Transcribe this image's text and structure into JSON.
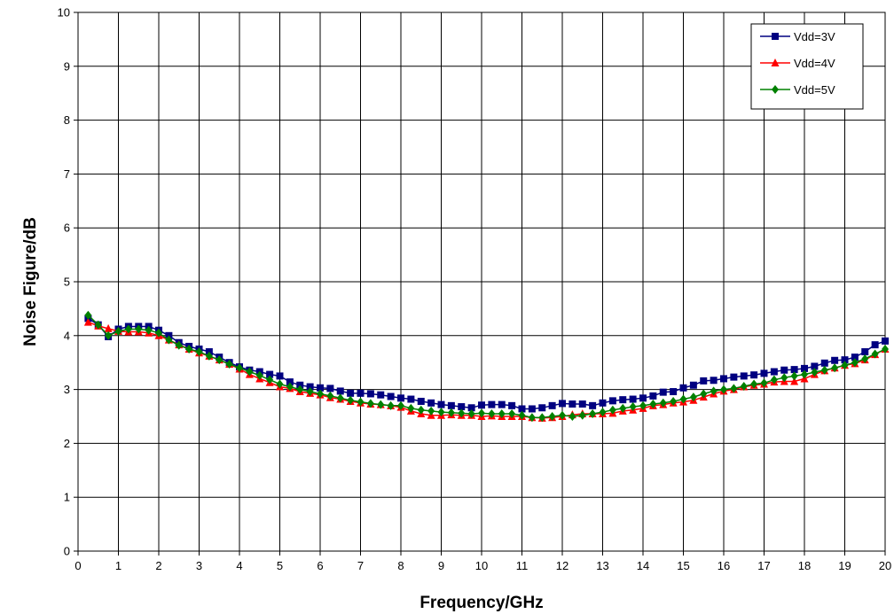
{
  "chart_data": {
    "type": "line",
    "xlabel": "Frequency/GHz",
    "ylabel": "Noise Figure/dB",
    "xlim": [
      0,
      20
    ],
    "ylim": [
      0,
      10
    ],
    "xticks": [
      "0",
      "1",
      "2",
      "3",
      "4",
      "5",
      "6",
      "7",
      "8",
      "9",
      "10",
      "11",
      "12",
      "13",
      "14",
      "15",
      "16",
      "17",
      "18",
      "19",
      "20"
    ],
    "yticks": [
      "0",
      "1",
      "2",
      "3",
      "4",
      "5",
      "6",
      "7",
      "8",
      "9",
      "10"
    ],
    "grid": true,
    "legend_position": "top-right",
    "x": [
      0.25,
      0.5,
      0.75,
      1.0,
      1.25,
      1.5,
      1.75,
      2.0,
      2.25,
      2.5,
      2.75,
      3.0,
      3.25,
      3.5,
      3.75,
      4.0,
      4.25,
      4.5,
      4.75,
      5.0,
      5.25,
      5.5,
      5.75,
      6.0,
      6.25,
      6.5,
      6.75,
      7.0,
      7.25,
      7.5,
      7.75,
      8.0,
      8.25,
      8.5,
      8.75,
      9.0,
      9.25,
      9.5,
      9.75,
      10.0,
      10.25,
      10.5,
      10.75,
      11.0,
      11.25,
      11.5,
      11.75,
      12.0,
      12.25,
      12.5,
      12.75,
      13.0,
      13.25,
      13.5,
      13.75,
      14.0,
      14.25,
      14.5,
      14.75,
      15.0,
      15.25,
      15.5,
      15.75,
      16.0,
      16.25,
      16.5,
      16.75,
      17.0,
      17.25,
      17.5,
      17.75,
      18.0,
      18.25,
      18.5,
      18.75,
      19.0,
      19.25,
      19.5,
      19.75,
      20.0
    ],
    "series": [
      {
        "name": "Vdd=3V",
        "color": "#000080",
        "marker": "square",
        "values": [
          4.32,
          4.2,
          3.98,
          4.12,
          4.17,
          4.17,
          4.17,
          4.1,
          4.0,
          3.87,
          3.8,
          3.75,
          3.7,
          3.6,
          3.5,
          3.42,
          3.36,
          3.33,
          3.28,
          3.25,
          3.14,
          3.08,
          3.05,
          3.03,
          3.02,
          2.97,
          2.93,
          2.93,
          2.92,
          2.9,
          2.87,
          2.84,
          2.82,
          2.78,
          2.75,
          2.72,
          2.7,
          2.68,
          2.66,
          2.71,
          2.72,
          2.72,
          2.7,
          2.64,
          2.64,
          2.66,
          2.7,
          2.74,
          2.73,
          2.73,
          2.7,
          2.75,
          2.79,
          2.81,
          2.82,
          2.84,
          2.88,
          2.95,
          2.96,
          3.03,
          3.08,
          3.16,
          3.17,
          3.2,
          3.23,
          3.25,
          3.27,
          3.3,
          3.33,
          3.36,
          3.37,
          3.39,
          3.43,
          3.49,
          3.54,
          3.55,
          3.6,
          3.7,
          3.83,
          3.9
        ]
      },
      {
        "name": "Vdd=4V",
        "color": "#ff0000",
        "marker": "triangle",
        "values": [
          4.25,
          4.18,
          4.13,
          4.08,
          4.07,
          4.07,
          4.05,
          4.0,
          3.92,
          3.83,
          3.75,
          3.68,
          3.62,
          3.55,
          3.47,
          3.38,
          3.28,
          3.2,
          3.13,
          3.05,
          3.02,
          2.96,
          2.93,
          2.9,
          2.85,
          2.82,
          2.78,
          2.75,
          2.73,
          2.72,
          2.7,
          2.67,
          2.6,
          2.55,
          2.52,
          2.52,
          2.53,
          2.52,
          2.52,
          2.5,
          2.51,
          2.5,
          2.5,
          2.5,
          2.48,
          2.47,
          2.48,
          2.5,
          2.53,
          2.55,
          2.55,
          2.55,
          2.56,
          2.6,
          2.62,
          2.65,
          2.7,
          2.72,
          2.75,
          2.77,
          2.8,
          2.86,
          2.92,
          2.97,
          3.0,
          3.05,
          3.08,
          3.1,
          3.14,
          3.15,
          3.15,
          3.2,
          3.28,
          3.35,
          3.4,
          3.45,
          3.48,
          3.55,
          3.65,
          3.75
        ]
      },
      {
        "name": "Vdd=5V",
        "color": "#008000",
        "marker": "diamond",
        "values": [
          4.38,
          4.2,
          4.0,
          4.08,
          4.12,
          4.12,
          4.1,
          4.05,
          3.92,
          3.82,
          3.75,
          3.7,
          3.62,
          3.55,
          3.47,
          3.4,
          3.33,
          3.26,
          3.18,
          3.1,
          3.05,
          3.0,
          2.96,
          2.92,
          2.88,
          2.84,
          2.8,
          2.77,
          2.74,
          2.72,
          2.7,
          2.7,
          2.65,
          2.62,
          2.6,
          2.58,
          2.57,
          2.56,
          2.55,
          2.56,
          2.55,
          2.55,
          2.55,
          2.52,
          2.48,
          2.48,
          2.5,
          2.52,
          2.5,
          2.52,
          2.55,
          2.58,
          2.62,
          2.65,
          2.68,
          2.7,
          2.73,
          2.75,
          2.78,
          2.82,
          2.86,
          2.92,
          2.97,
          3.0,
          3.02,
          3.06,
          3.1,
          3.12,
          3.18,
          3.22,
          3.25,
          3.28,
          3.32,
          3.36,
          3.4,
          3.45,
          3.5,
          3.57,
          3.66,
          3.75
        ]
      }
    ]
  }
}
